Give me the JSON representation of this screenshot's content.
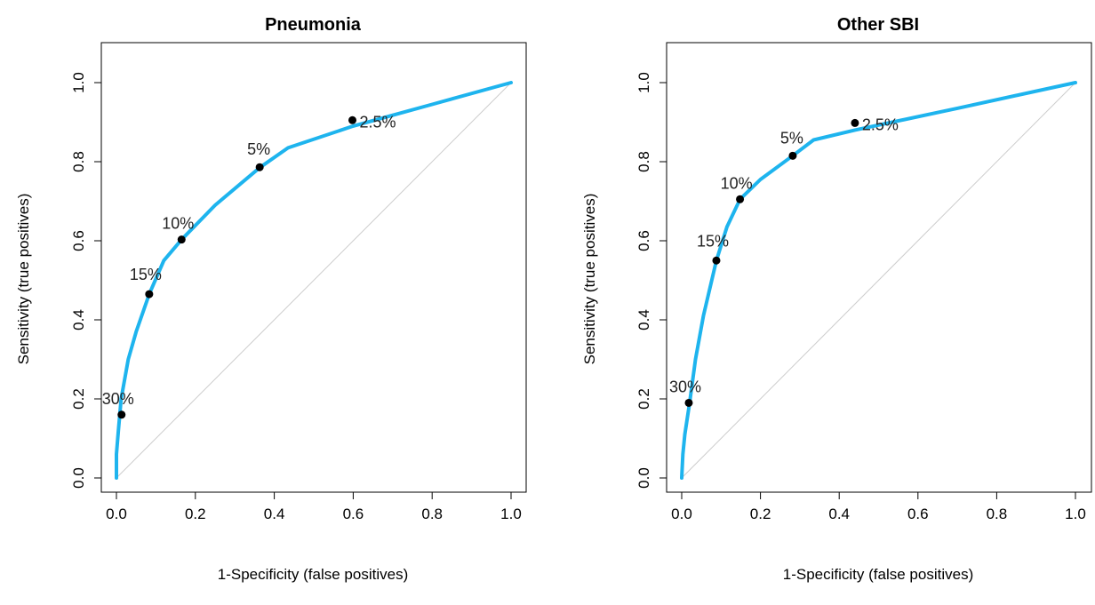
{
  "chart_data": [
    {
      "type": "line",
      "title": "Pneumonia",
      "xlabel": "1-Specificity (false positives)",
      "ylabel": "Sensitivity (true positives)",
      "xlim": [
        0,
        1
      ],
      "ylim": [
        0,
        1
      ],
      "x_ticks": [
        "0.0",
        "0.2",
        "0.4",
        "0.6",
        "0.8",
        "1.0"
      ],
      "y_ticks": [
        "0.0",
        "0.2",
        "0.4",
        "0.6",
        "0.8",
        "1.0"
      ],
      "grid": false,
      "legend": "none",
      "line_color": "#1EB4EE",
      "reference_color": "#CCCCCC",
      "curve": {
        "x": [
          0.0,
          0.0,
          0.005,
          0.012,
          0.03,
          0.05,
          0.083,
          0.12,
          0.165,
          0.25,
          0.363,
          0.435,
          0.6,
          0.8,
          1.0
        ],
        "y": [
          0.0,
          0.06,
          0.12,
          0.2,
          0.3,
          0.37,
          0.465,
          0.55,
          0.603,
          0.69,
          0.785,
          0.835,
          0.89,
          0.945,
          1.0
        ]
      },
      "points": [
        {
          "label": "2.5%",
          "x": 0.598,
          "y": 0.905
        },
        {
          "label": "5%",
          "x": 0.363,
          "y": 0.786
        },
        {
          "label": "10%",
          "x": 0.165,
          "y": 0.603
        },
        {
          "label": "15%",
          "x": 0.083,
          "y": 0.465
        },
        {
          "label": "30%",
          "x": 0.013,
          "y": 0.16
        }
      ]
    },
    {
      "type": "line",
      "title": "Other SBI",
      "xlabel": "1-Specificity (false positives)",
      "ylabel": "Sensitivity (true positives)",
      "xlim": [
        0,
        1
      ],
      "ylim": [
        0,
        1
      ],
      "x_ticks": [
        "0.0",
        "0.2",
        "0.4",
        "0.6",
        "0.8",
        "1.0"
      ],
      "y_ticks": [
        "0.0",
        "0.2",
        "0.4",
        "0.6",
        "0.8",
        "1.0"
      ],
      "grid": false,
      "legend": "none",
      "line_color": "#1EB4EE",
      "reference_color": "#CCCCCC",
      "curve": {
        "x": [
          0.0,
          0.003,
          0.008,
          0.02,
          0.035,
          0.055,
          0.088,
          0.115,
          0.148,
          0.2,
          0.282,
          0.335,
          0.44,
          0.7,
          1.0
        ],
        "y": [
          0.0,
          0.06,
          0.11,
          0.19,
          0.3,
          0.41,
          0.55,
          0.635,
          0.705,
          0.755,
          0.815,
          0.855,
          0.88,
          0.935,
          1.0
        ]
      },
      "points": [
        {
          "label": "2.5%",
          "x": 0.44,
          "y": 0.898
        },
        {
          "label": "5%",
          "x": 0.282,
          "y": 0.815
        },
        {
          "label": "10%",
          "x": 0.148,
          "y": 0.705
        },
        {
          "label": "15%",
          "x": 0.088,
          "y": 0.55
        },
        {
          "label": "30%",
          "x": 0.018,
          "y": 0.19
        }
      ]
    }
  ]
}
